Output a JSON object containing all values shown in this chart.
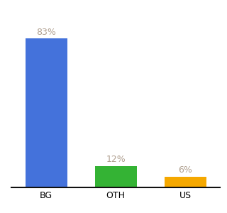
{
  "categories": [
    "BG",
    "OTH",
    "US"
  ],
  "values": [
    83,
    12,
    6
  ],
  "bar_colors": [
    "#4472db",
    "#34b334",
    "#f5a800"
  ],
  "labels": [
    "83%",
    "12%",
    "6%"
  ],
  "background_color": "#ffffff",
  "ylim": [
    0,
    95
  ],
  "label_fontsize": 9,
  "tick_fontsize": 9,
  "label_color": "#b0a090"
}
